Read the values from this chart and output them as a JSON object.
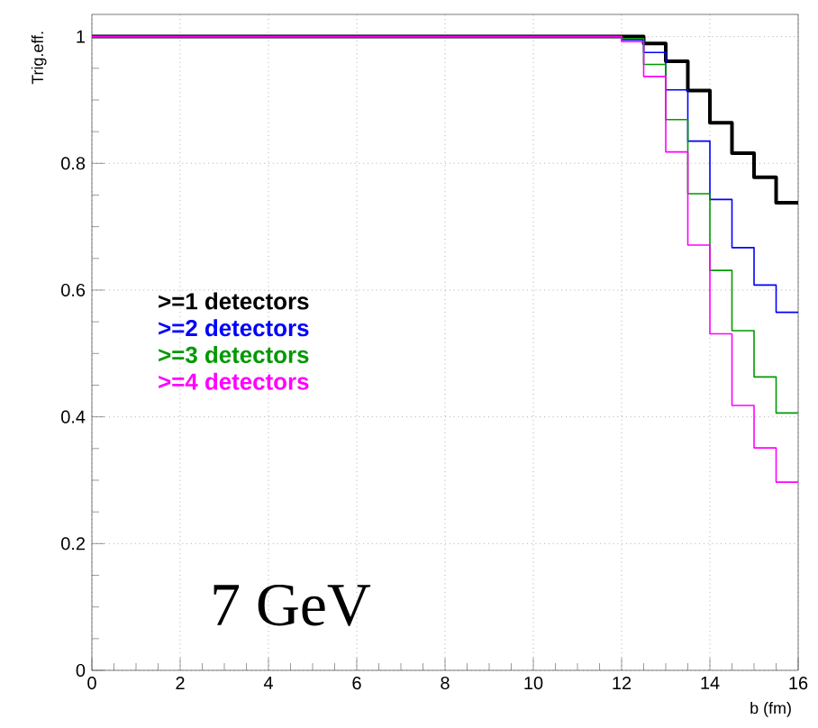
{
  "chart_data": {
    "type": "histogram",
    "xlabel": "b (fm)",
    "ylabel": "Trig.eff.",
    "annotations": [
      "7 GeV"
    ],
    "bins": [
      0,
      0.5,
      1,
      1.5,
      2,
      2.5,
      3,
      3.5,
      4,
      4.5,
      5,
      5.5,
      6,
      6.5,
      7,
      7.5,
      8,
      8.5,
      9,
      9.5,
      10,
      10.5,
      11,
      11.5,
      12,
      12.5,
      13,
      13.5,
      14,
      14.5,
      15,
      15.5,
      16
    ],
    "series": [
      {
        "name": ">=1 detectors",
        "color": "#000000",
        "values": [
          1,
          1,
          1,
          1,
          1,
          1,
          1,
          1,
          1,
          1,
          1,
          1,
          1,
          1,
          1,
          1,
          1,
          1,
          1,
          1,
          1,
          1,
          1,
          1,
          1.0,
          0.989,
          0.961,
          0.915,
          0.864,
          0.816,
          0.778,
          0.738
        ]
      },
      {
        "name": ">=2 detectors",
        "color": "#0000ff",
        "values": [
          1,
          1,
          1,
          1,
          1,
          1,
          1,
          1,
          1,
          1,
          1,
          1,
          1,
          1,
          1,
          1,
          1,
          1,
          1,
          1,
          1,
          1,
          1,
          1,
          0.995,
          0.975,
          0.916,
          0.835,
          0.743,
          0.667,
          0.608,
          0.565
        ]
      },
      {
        "name": ">=3 detectors",
        "color": "#009900",
        "values": [
          1,
          1,
          1,
          1,
          1,
          1,
          1,
          1,
          1,
          1,
          1,
          1,
          1,
          1,
          1,
          1,
          1,
          1,
          1,
          1,
          1,
          1,
          1,
          1,
          0.997,
          0.956,
          0.869,
          0.752,
          0.631,
          0.536,
          0.463,
          0.406
        ]
      },
      {
        "name": ">=4 detectors",
        "color": "#ff00ff",
        "values": [
          1,
          1,
          1,
          1,
          1,
          1,
          1,
          1,
          1,
          1,
          1,
          1,
          1,
          1,
          1,
          1,
          1,
          1,
          1,
          1,
          1,
          1,
          1,
          1,
          0.992,
          0.937,
          0.818,
          0.671,
          0.531,
          0.418,
          0.351,
          0.297
        ]
      }
    ],
    "xlim": [
      0,
      16
    ],
    "ylim": [
      0,
      1.035
    ],
    "xticks": [
      0,
      2,
      4,
      6,
      8,
      10,
      12,
      14,
      16
    ],
    "yticks": [
      0,
      0.2,
      0.4,
      0.6,
      0.8,
      1
    ],
    "grid": true,
    "legend": "left"
  }
}
